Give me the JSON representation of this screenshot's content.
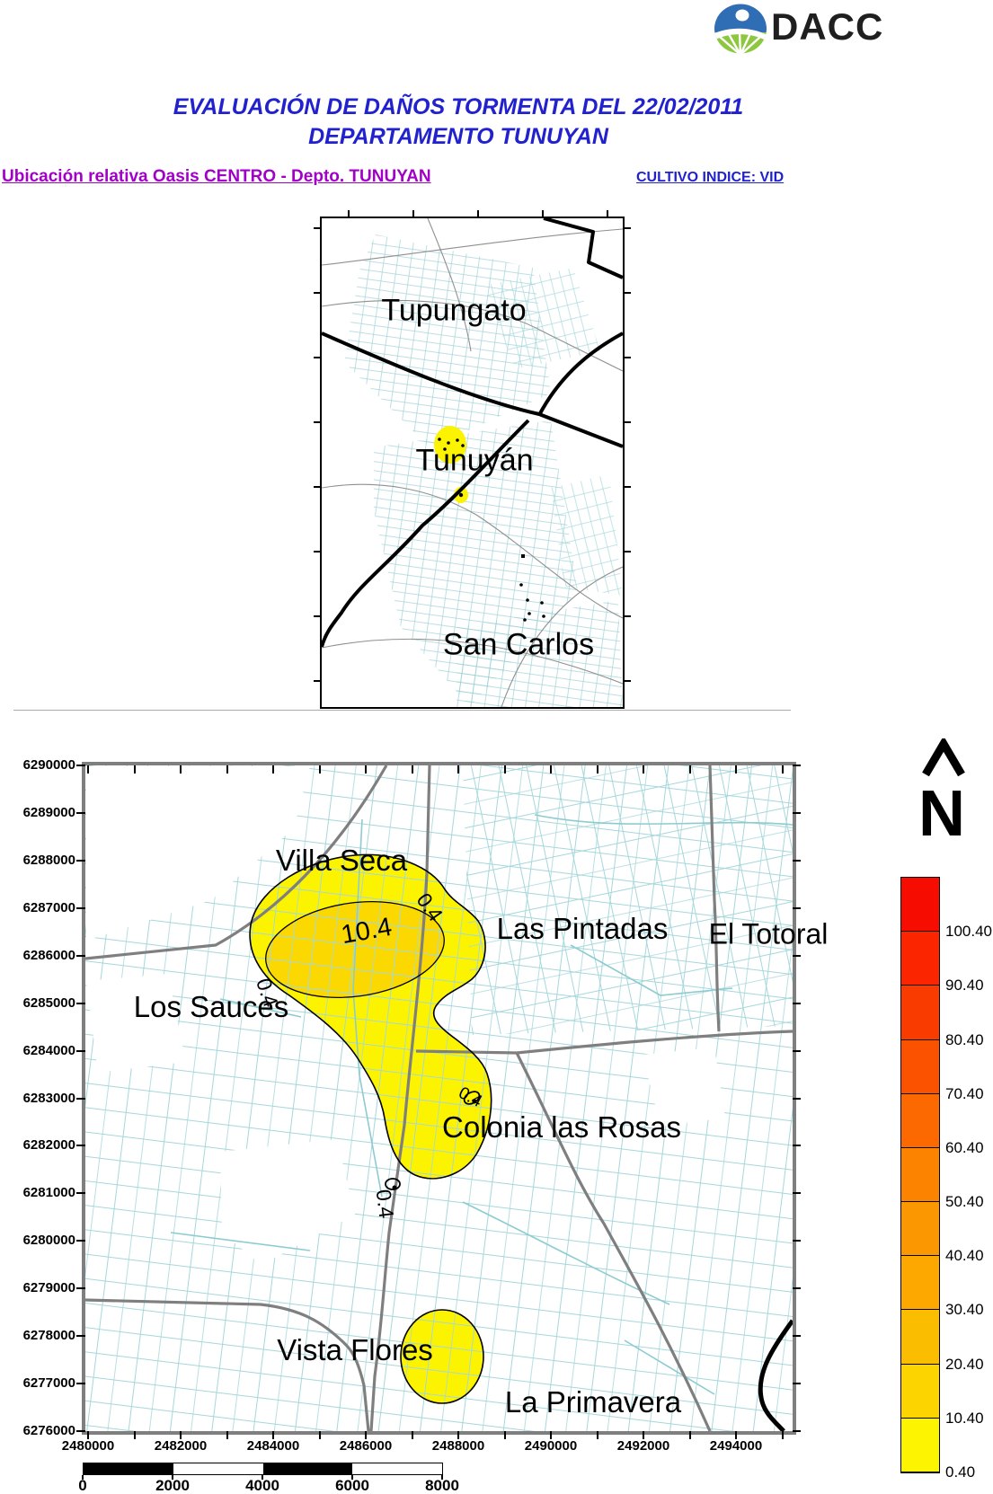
{
  "header": {
    "logo_text": "DACC",
    "title_line1": "EVALUACIÓN DE DAÑOS TORMENTA DEL 22/02/2011",
    "title_line2": "DEPARTAMENTO TUNUYAN"
  },
  "subtitles": {
    "left": "Ubicación relativa Oasis CENTRO - Depto. TUNUYAN",
    "right": "CULTIVO INDICE: VID"
  },
  "overview_map": {
    "labels": [
      "Tupungato",
      "Tunuyán",
      "San Carlos"
    ]
  },
  "main_map": {
    "place_labels": [
      "Villa Seca",
      "Las Pintadas",
      "El Totoral",
      "Los Sauces",
      "Colonia las Rosas",
      "Vista Flores",
      "La Primavera"
    ],
    "contour_labels": [
      "10.4",
      "0.4",
      "0.4",
      "0.4",
      "0.4"
    ],
    "y_axis": [
      "6290000",
      "6289000",
      "6288000",
      "6287000",
      "6286000",
      "6285000",
      "6284000",
      "6283000",
      "6282000",
      "6281000",
      "6280000",
      "6279000",
      "6278000",
      "6277000",
      "6276000"
    ],
    "x_axis": [
      "2480000",
      "2482000",
      "2484000",
      "2486000",
      "2488000",
      "2490000",
      "2492000",
      "2494000"
    ]
  },
  "legend": {
    "north_glyph": "Λ",
    "north_label": "N",
    "entries": [
      {
        "label": "100.40",
        "color": "#F60C00"
      },
      {
        "label": "90.40",
        "color": "#FB2500"
      },
      {
        "label": "80.40",
        "color": "#F93B00"
      },
      {
        "label": "70.40",
        "color": "#FB5200"
      },
      {
        "label": "60.40",
        "color": "#FB6900"
      },
      {
        "label": "50.40",
        "color": "#FC8300"
      },
      {
        "label": "40.40",
        "color": "#FB9700"
      },
      {
        "label": "30.40",
        "color": "#FCA800"
      },
      {
        "label": "20.40",
        "color": "#FBBD00"
      },
      {
        "label": "10.40",
        "color": "#FCD500"
      },
      {
        "label": "0.40",
        "color": "#FCF400"
      }
    ]
  },
  "scale_bar": {
    "labels": [
      "0",
      "2000",
      "4000",
      "6000",
      "8000"
    ],
    "segment_colors": [
      "#000000",
      "#ffffff",
      "#000000",
      "#ffffff"
    ]
  },
  "colors": {
    "parcel_lines": "#A5D7DB",
    "roads": "#7F7F7F",
    "map_frame": "#7F7F7F",
    "damage_outer_fill": "#FCF301",
    "damage_inner_fill": "#FBD900",
    "title_blue": "#2121CE",
    "subtitle_purple": "#A100C6"
  }
}
